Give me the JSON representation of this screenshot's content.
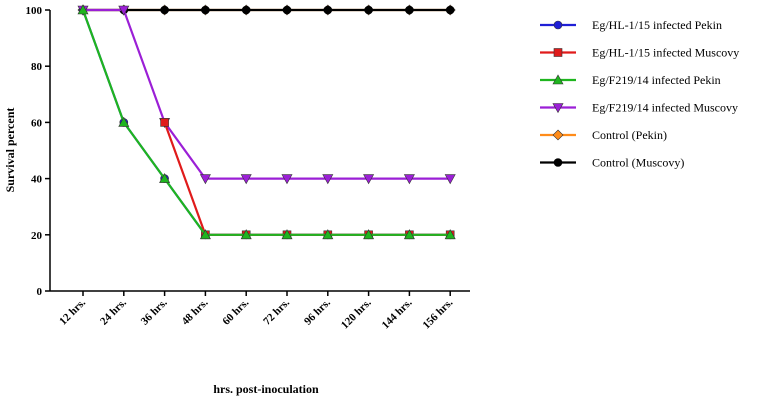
{
  "chart_data": {
    "type": "line",
    "title": "",
    "xlabel": "hrs. post-inoculation",
    "ylabel": "Survival percent",
    "ylim": [
      0,
      100
    ],
    "yticks": [
      0,
      20,
      40,
      60,
      80,
      100
    ],
    "categories": [
      "12 hrs.",
      "24 hrs.",
      "36 hrs.",
      "48 hrs.",
      "60 hrs.",
      "72 hrs.",
      "96 hrs.",
      "120 hrs.",
      "144 hrs.",
      "156 hrs."
    ],
    "grid": false,
    "legend_position": "right",
    "series": [
      {
        "name": "Eg/HL-1/15 infected Pekin",
        "color": "#1f1fd6",
        "marker": "circle",
        "values": [
          100,
          60,
          40,
          20,
          20,
          20,
          20,
          20,
          20,
          20
        ]
      },
      {
        "name": "Eg/HL-1/15 infected Muscovy",
        "color": "#e01b1b",
        "marker": "square",
        "values": [
          null,
          null,
          60,
          20,
          20,
          20,
          20,
          20,
          20,
          20
        ]
      },
      {
        "name": "Eg/F219/14 infected Pekin",
        "color": "#1fb51f",
        "marker": "triangle-up",
        "values": [
          100,
          60,
          40,
          20,
          20,
          20,
          20,
          20,
          20,
          20
        ]
      },
      {
        "name": "Eg/F219/14 infected Muscovy",
        "color": "#9b1fd6",
        "marker": "triangle-down",
        "values": [
          100,
          100,
          60,
          40,
          40,
          40,
          40,
          40,
          40,
          40
        ]
      },
      {
        "name": "Control (Pekin)",
        "color": "#ff8c1a",
        "marker": "diamond",
        "values": [
          100,
          100,
          100,
          100,
          100,
          100,
          100,
          100,
          100,
          100
        ]
      },
      {
        "name": "Control (Muscovy)",
        "color": "#000000",
        "marker": "circle",
        "values": [
          100,
          100,
          100,
          100,
          100,
          100,
          100,
          100,
          100,
          100
        ]
      }
    ]
  }
}
